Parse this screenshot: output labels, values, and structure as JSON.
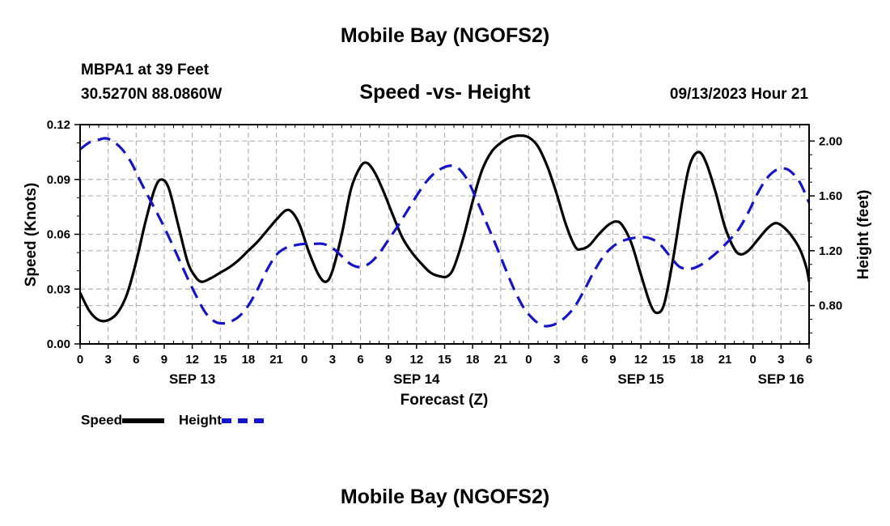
{
  "title": "Mobile Bay (NGOFS2)",
  "bottom_title": "Mobile Bay (NGOFS2)",
  "station": "MBPA1 at 39 Feet",
  "coordinates": "30.5270N  88.0860W",
  "subtitle": "Speed -vs- Height",
  "datetime": "09/13/2023 Hour 21",
  "legend": {
    "speed_label": "Speed",
    "height_label": "Height"
  },
  "colors": {
    "speed": "#000000",
    "height": "#1414c8",
    "grid": "#b4b4b4"
  },
  "chart_data": {
    "type": "line",
    "xlabel": "Forecast (Z)",
    "ylabel_left": "Speed (Knots)",
    "ylabel_right": "Height (feet)",
    "x_unit": "hours since 2023-09-13 00Z",
    "xlim": [
      0,
      78
    ],
    "x_ticks": [
      0,
      3,
      6,
      9,
      12,
      15,
      18,
      21,
      24,
      27,
      30,
      33,
      36,
      39,
      42,
      45,
      48,
      51,
      54,
      57,
      60,
      63,
      66,
      69,
      72,
      75,
      78
    ],
    "x_tick_labels": [
      "0",
      "3",
      "6",
      "9",
      "12",
      "15",
      "18",
      "21",
      "0",
      "3",
      "6",
      "9",
      "12",
      "15",
      "18",
      "21",
      "0",
      "3",
      "6",
      "9",
      "12",
      "15",
      "18",
      "21",
      "0",
      "3",
      "6"
    ],
    "day_labels": [
      {
        "x": 12,
        "label": "SEP 13"
      },
      {
        "x": 36,
        "label": "SEP 14"
      },
      {
        "x": 60,
        "label": "SEP 15"
      },
      {
        "x": 75,
        "label": "SEP 16"
      }
    ],
    "ylim_left": [
      0,
      0.12
    ],
    "y_ticks_left": [
      "0.00",
      "0.03",
      "0.06",
      "0.09",
      "0.12"
    ],
    "ylim_right": [
      0.52,
      2.12
    ],
    "y_ticks_right": [
      "0.80",
      "1.20",
      "1.60",
      "2.00"
    ],
    "grid": true,
    "series": [
      {
        "name": "Speed",
        "axis": "left",
        "style": "solid",
        "points": [
          [
            0,
            0.028
          ],
          [
            1,
            0.018
          ],
          [
            2,
            0.013
          ],
          [
            3,
            0.013
          ],
          [
            4,
            0.017
          ],
          [
            5,
            0.027
          ],
          [
            6,
            0.045
          ],
          [
            7,
            0.067
          ],
          [
            8,
            0.085
          ],
          [
            8.7,
            0.09
          ],
          [
            9.5,
            0.085
          ],
          [
            10.5,
            0.065
          ],
          [
            11.5,
            0.045
          ],
          [
            12.3,
            0.037
          ],
          [
            13,
            0.034
          ],
          [
            14,
            0.036
          ],
          [
            15,
            0.039
          ],
          [
            16,
            0.042
          ],
          [
            17,
            0.046
          ],
          [
            18,
            0.051
          ],
          [
            19,
            0.056
          ],
          [
            20,
            0.062
          ],
          [
            21,
            0.068
          ],
          [
            22,
            0.073
          ],
          [
            22.7,
            0.072
          ],
          [
            23.5,
            0.065
          ],
          [
            24.5,
            0.05
          ],
          [
            25.5,
            0.038
          ],
          [
            26.3,
            0.034
          ],
          [
            27,
            0.04
          ],
          [
            28,
            0.06
          ],
          [
            29,
            0.085
          ],
          [
            30,
            0.097
          ],
          [
            30.7,
            0.099
          ],
          [
            31.5,
            0.094
          ],
          [
            32.5,
            0.083
          ],
          [
            33.5,
            0.07
          ],
          [
            34.5,
            0.058
          ],
          [
            35.5,
            0.05
          ],
          [
            36.5,
            0.044
          ],
          [
            37.5,
            0.039
          ],
          [
            38.5,
            0.037
          ],
          [
            39.3,
            0.037
          ],
          [
            40,
            0.042
          ],
          [
            41,
            0.058
          ],
          [
            42,
            0.078
          ],
          [
            43,
            0.095
          ],
          [
            44,
            0.105
          ],
          [
            45,
            0.11
          ],
          [
            46,
            0.113
          ],
          [
            47,
            0.114
          ],
          [
            48,
            0.113
          ],
          [
            49,
            0.108
          ],
          [
            50,
            0.097
          ],
          [
            51,
            0.082
          ],
          [
            52,
            0.065
          ],
          [
            53,
            0.053
          ],
          [
            53.7,
            0.052
          ],
          [
            54.5,
            0.054
          ],
          [
            55.5,
            0.06
          ],
          [
            56.5,
            0.065
          ],
          [
            57.3,
            0.067
          ],
          [
            58,
            0.065
          ],
          [
            59,
            0.055
          ],
          [
            60,
            0.038
          ],
          [
            61,
            0.022
          ],
          [
            61.7,
            0.017
          ],
          [
            62.5,
            0.022
          ],
          [
            63.5,
            0.048
          ],
          [
            64.5,
            0.08
          ],
          [
            65.3,
            0.099
          ],
          [
            66.2,
            0.105
          ],
          [
            67,
            0.099
          ],
          [
            68,
            0.083
          ],
          [
            69,
            0.064
          ],
          [
            70,
            0.052
          ],
          [
            70.7,
            0.049
          ],
          [
            71.5,
            0.051
          ],
          [
            72.5,
            0.057
          ],
          [
            73.5,
            0.063
          ],
          [
            74.3,
            0.066
          ],
          [
            75,
            0.065
          ],
          [
            76,
            0.06
          ],
          [
            77,
            0.052
          ],
          [
            77.7,
            0.042
          ],
          [
            78,
            0.034
          ]
        ]
      },
      {
        "name": "Height",
        "axis": "right",
        "style": "dashed",
        "points": [
          [
            0,
            1.94
          ],
          [
            1,
            1.99
          ],
          [
            2,
            2.01
          ],
          [
            2.7,
            2.02
          ],
          [
            3.5,
            2.0
          ],
          [
            4.5,
            1.94
          ],
          [
            5.5,
            1.84
          ],
          [
            6.5,
            1.7
          ],
          [
            7.5,
            1.57
          ],
          [
            8.5,
            1.44
          ],
          [
            9.5,
            1.3
          ],
          [
            10.5,
            1.15
          ],
          [
            11.5,
            1.0
          ],
          [
            12.5,
            0.86
          ],
          [
            13.5,
            0.74
          ],
          [
            14.5,
            0.68
          ],
          [
            15.3,
            0.67
          ],
          [
            16,
            0.68
          ],
          [
            17,
            0.72
          ],
          [
            18,
            0.8
          ],
          [
            19,
            0.92
          ],
          [
            20,
            1.06
          ],
          [
            21,
            1.17
          ],
          [
            22,
            1.22
          ],
          [
            23,
            1.24
          ],
          [
            24,
            1.25
          ],
          [
            25,
            1.25
          ],
          [
            26,
            1.25
          ],
          [
            27,
            1.22
          ],
          [
            28,
            1.16
          ],
          [
            29,
            1.1
          ],
          [
            30,
            1.08
          ],
          [
            31,
            1.11
          ],
          [
            32,
            1.18
          ],
          [
            33,
            1.28
          ],
          [
            34,
            1.38
          ],
          [
            35,
            1.49
          ],
          [
            36,
            1.6
          ],
          [
            37,
            1.7
          ],
          [
            38,
            1.77
          ],
          [
            39,
            1.81
          ],
          [
            39.8,
            1.82
          ],
          [
            40.5,
            1.8
          ],
          [
            41.5,
            1.71
          ],
          [
            42.5,
            1.56
          ],
          [
            43.5,
            1.4
          ],
          [
            44.5,
            1.24
          ],
          [
            45.5,
            1.07
          ],
          [
            46.5,
            0.91
          ],
          [
            47.5,
            0.78
          ],
          [
            48.5,
            0.7
          ],
          [
            49.3,
            0.66
          ],
          [
            50,
            0.65
          ],
          [
            51,
            0.67
          ],
          [
            52,
            0.72
          ],
          [
            53,
            0.8
          ],
          [
            54,
            0.92
          ],
          [
            55,
            1.05
          ],
          [
            56,
            1.16
          ],
          [
            57,
            1.23
          ],
          [
            58,
            1.27
          ],
          [
            59,
            1.29
          ],
          [
            60,
            1.3
          ],
          [
            61,
            1.29
          ],
          [
            62,
            1.25
          ],
          [
            63,
            1.17
          ],
          [
            64,
            1.09
          ],
          [
            64.7,
            1.07
          ],
          [
            65.5,
            1.07
          ],
          [
            66.5,
            1.1
          ],
          [
            67.5,
            1.15
          ],
          [
            68.5,
            1.21
          ],
          [
            69.5,
            1.28
          ],
          [
            70.5,
            1.36
          ],
          [
            71.5,
            1.48
          ],
          [
            72.5,
            1.62
          ],
          [
            73.5,
            1.73
          ],
          [
            74.5,
            1.79
          ],
          [
            75.3,
            1.8
          ],
          [
            76,
            1.78
          ],
          [
            77,
            1.7
          ],
          [
            78,
            1.55
          ]
        ]
      }
    ]
  }
}
